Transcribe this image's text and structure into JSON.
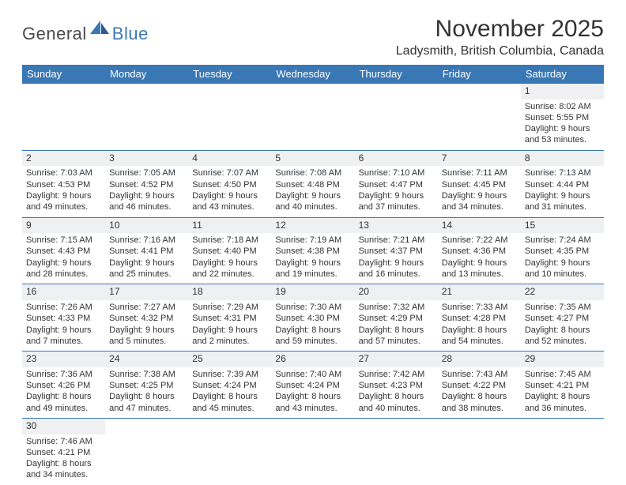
{
  "logo": {
    "general": "General",
    "blue": "Blue"
  },
  "title": "November 2025",
  "location": "Ladysmith, British Columbia, Canada",
  "colors": {
    "header_bg": "#3a78b5",
    "header_fg": "#ffffff",
    "rule": "#3a78b5",
    "daynum_bg": "#eef0f2",
    "text": "#333333",
    "page_bg": "#ffffff"
  },
  "typography": {
    "title_fontsize": 30,
    "location_fontsize": 16,
    "dayheader_fontsize": 13,
    "cell_fontsize": 11,
    "logo_fontsize": 22
  },
  "day_headers": [
    "Sunday",
    "Monday",
    "Tuesday",
    "Wednesday",
    "Thursday",
    "Friday",
    "Saturday"
  ],
  "weeks": [
    [
      null,
      null,
      null,
      null,
      null,
      null,
      {
        "n": "1",
        "sunrise": "Sunrise: 8:02 AM",
        "sunset": "Sunset: 5:55 PM",
        "day1": "Daylight: 9 hours",
        "day2": "and 53 minutes."
      }
    ],
    [
      {
        "n": "2",
        "sunrise": "Sunrise: 7:03 AM",
        "sunset": "Sunset: 4:53 PM",
        "day1": "Daylight: 9 hours",
        "day2": "and 49 minutes."
      },
      {
        "n": "3",
        "sunrise": "Sunrise: 7:05 AM",
        "sunset": "Sunset: 4:52 PM",
        "day1": "Daylight: 9 hours",
        "day2": "and 46 minutes."
      },
      {
        "n": "4",
        "sunrise": "Sunrise: 7:07 AM",
        "sunset": "Sunset: 4:50 PM",
        "day1": "Daylight: 9 hours",
        "day2": "and 43 minutes."
      },
      {
        "n": "5",
        "sunrise": "Sunrise: 7:08 AM",
        "sunset": "Sunset: 4:48 PM",
        "day1": "Daylight: 9 hours",
        "day2": "and 40 minutes."
      },
      {
        "n": "6",
        "sunrise": "Sunrise: 7:10 AM",
        "sunset": "Sunset: 4:47 PM",
        "day1": "Daylight: 9 hours",
        "day2": "and 37 minutes."
      },
      {
        "n": "7",
        "sunrise": "Sunrise: 7:11 AM",
        "sunset": "Sunset: 4:45 PM",
        "day1": "Daylight: 9 hours",
        "day2": "and 34 minutes."
      },
      {
        "n": "8",
        "sunrise": "Sunrise: 7:13 AM",
        "sunset": "Sunset: 4:44 PM",
        "day1": "Daylight: 9 hours",
        "day2": "and 31 minutes."
      }
    ],
    [
      {
        "n": "9",
        "sunrise": "Sunrise: 7:15 AM",
        "sunset": "Sunset: 4:43 PM",
        "day1": "Daylight: 9 hours",
        "day2": "and 28 minutes."
      },
      {
        "n": "10",
        "sunrise": "Sunrise: 7:16 AM",
        "sunset": "Sunset: 4:41 PM",
        "day1": "Daylight: 9 hours",
        "day2": "and 25 minutes."
      },
      {
        "n": "11",
        "sunrise": "Sunrise: 7:18 AM",
        "sunset": "Sunset: 4:40 PM",
        "day1": "Daylight: 9 hours",
        "day2": "and 22 minutes."
      },
      {
        "n": "12",
        "sunrise": "Sunrise: 7:19 AM",
        "sunset": "Sunset: 4:38 PM",
        "day1": "Daylight: 9 hours",
        "day2": "and 19 minutes."
      },
      {
        "n": "13",
        "sunrise": "Sunrise: 7:21 AM",
        "sunset": "Sunset: 4:37 PM",
        "day1": "Daylight: 9 hours",
        "day2": "and 16 minutes."
      },
      {
        "n": "14",
        "sunrise": "Sunrise: 7:22 AM",
        "sunset": "Sunset: 4:36 PM",
        "day1": "Daylight: 9 hours",
        "day2": "and 13 minutes."
      },
      {
        "n": "15",
        "sunrise": "Sunrise: 7:24 AM",
        "sunset": "Sunset: 4:35 PM",
        "day1": "Daylight: 9 hours",
        "day2": "and 10 minutes."
      }
    ],
    [
      {
        "n": "16",
        "sunrise": "Sunrise: 7:26 AM",
        "sunset": "Sunset: 4:33 PM",
        "day1": "Daylight: 9 hours",
        "day2": "and 7 minutes."
      },
      {
        "n": "17",
        "sunrise": "Sunrise: 7:27 AM",
        "sunset": "Sunset: 4:32 PM",
        "day1": "Daylight: 9 hours",
        "day2": "and 5 minutes."
      },
      {
        "n": "18",
        "sunrise": "Sunrise: 7:29 AM",
        "sunset": "Sunset: 4:31 PM",
        "day1": "Daylight: 9 hours",
        "day2": "and 2 minutes."
      },
      {
        "n": "19",
        "sunrise": "Sunrise: 7:30 AM",
        "sunset": "Sunset: 4:30 PM",
        "day1": "Daylight: 8 hours",
        "day2": "and 59 minutes."
      },
      {
        "n": "20",
        "sunrise": "Sunrise: 7:32 AM",
        "sunset": "Sunset: 4:29 PM",
        "day1": "Daylight: 8 hours",
        "day2": "and 57 minutes."
      },
      {
        "n": "21",
        "sunrise": "Sunrise: 7:33 AM",
        "sunset": "Sunset: 4:28 PM",
        "day1": "Daylight: 8 hours",
        "day2": "and 54 minutes."
      },
      {
        "n": "22",
        "sunrise": "Sunrise: 7:35 AM",
        "sunset": "Sunset: 4:27 PM",
        "day1": "Daylight: 8 hours",
        "day2": "and 52 minutes."
      }
    ],
    [
      {
        "n": "23",
        "sunrise": "Sunrise: 7:36 AM",
        "sunset": "Sunset: 4:26 PM",
        "day1": "Daylight: 8 hours",
        "day2": "and 49 minutes."
      },
      {
        "n": "24",
        "sunrise": "Sunrise: 7:38 AM",
        "sunset": "Sunset: 4:25 PM",
        "day1": "Daylight: 8 hours",
        "day2": "and 47 minutes."
      },
      {
        "n": "25",
        "sunrise": "Sunrise: 7:39 AM",
        "sunset": "Sunset: 4:24 PM",
        "day1": "Daylight: 8 hours",
        "day2": "and 45 minutes."
      },
      {
        "n": "26",
        "sunrise": "Sunrise: 7:40 AM",
        "sunset": "Sunset: 4:24 PM",
        "day1": "Daylight: 8 hours",
        "day2": "and 43 minutes."
      },
      {
        "n": "27",
        "sunrise": "Sunrise: 7:42 AM",
        "sunset": "Sunset: 4:23 PM",
        "day1": "Daylight: 8 hours",
        "day2": "and 40 minutes."
      },
      {
        "n": "28",
        "sunrise": "Sunrise: 7:43 AM",
        "sunset": "Sunset: 4:22 PM",
        "day1": "Daylight: 8 hours",
        "day2": "and 38 minutes."
      },
      {
        "n": "29",
        "sunrise": "Sunrise: 7:45 AM",
        "sunset": "Sunset: 4:21 PM",
        "day1": "Daylight: 8 hours",
        "day2": "and 36 minutes."
      }
    ],
    [
      {
        "n": "30",
        "sunrise": "Sunrise: 7:46 AM",
        "sunset": "Sunset: 4:21 PM",
        "day1": "Daylight: 8 hours",
        "day2": "and 34 minutes."
      },
      null,
      null,
      null,
      null,
      null,
      null
    ]
  ]
}
